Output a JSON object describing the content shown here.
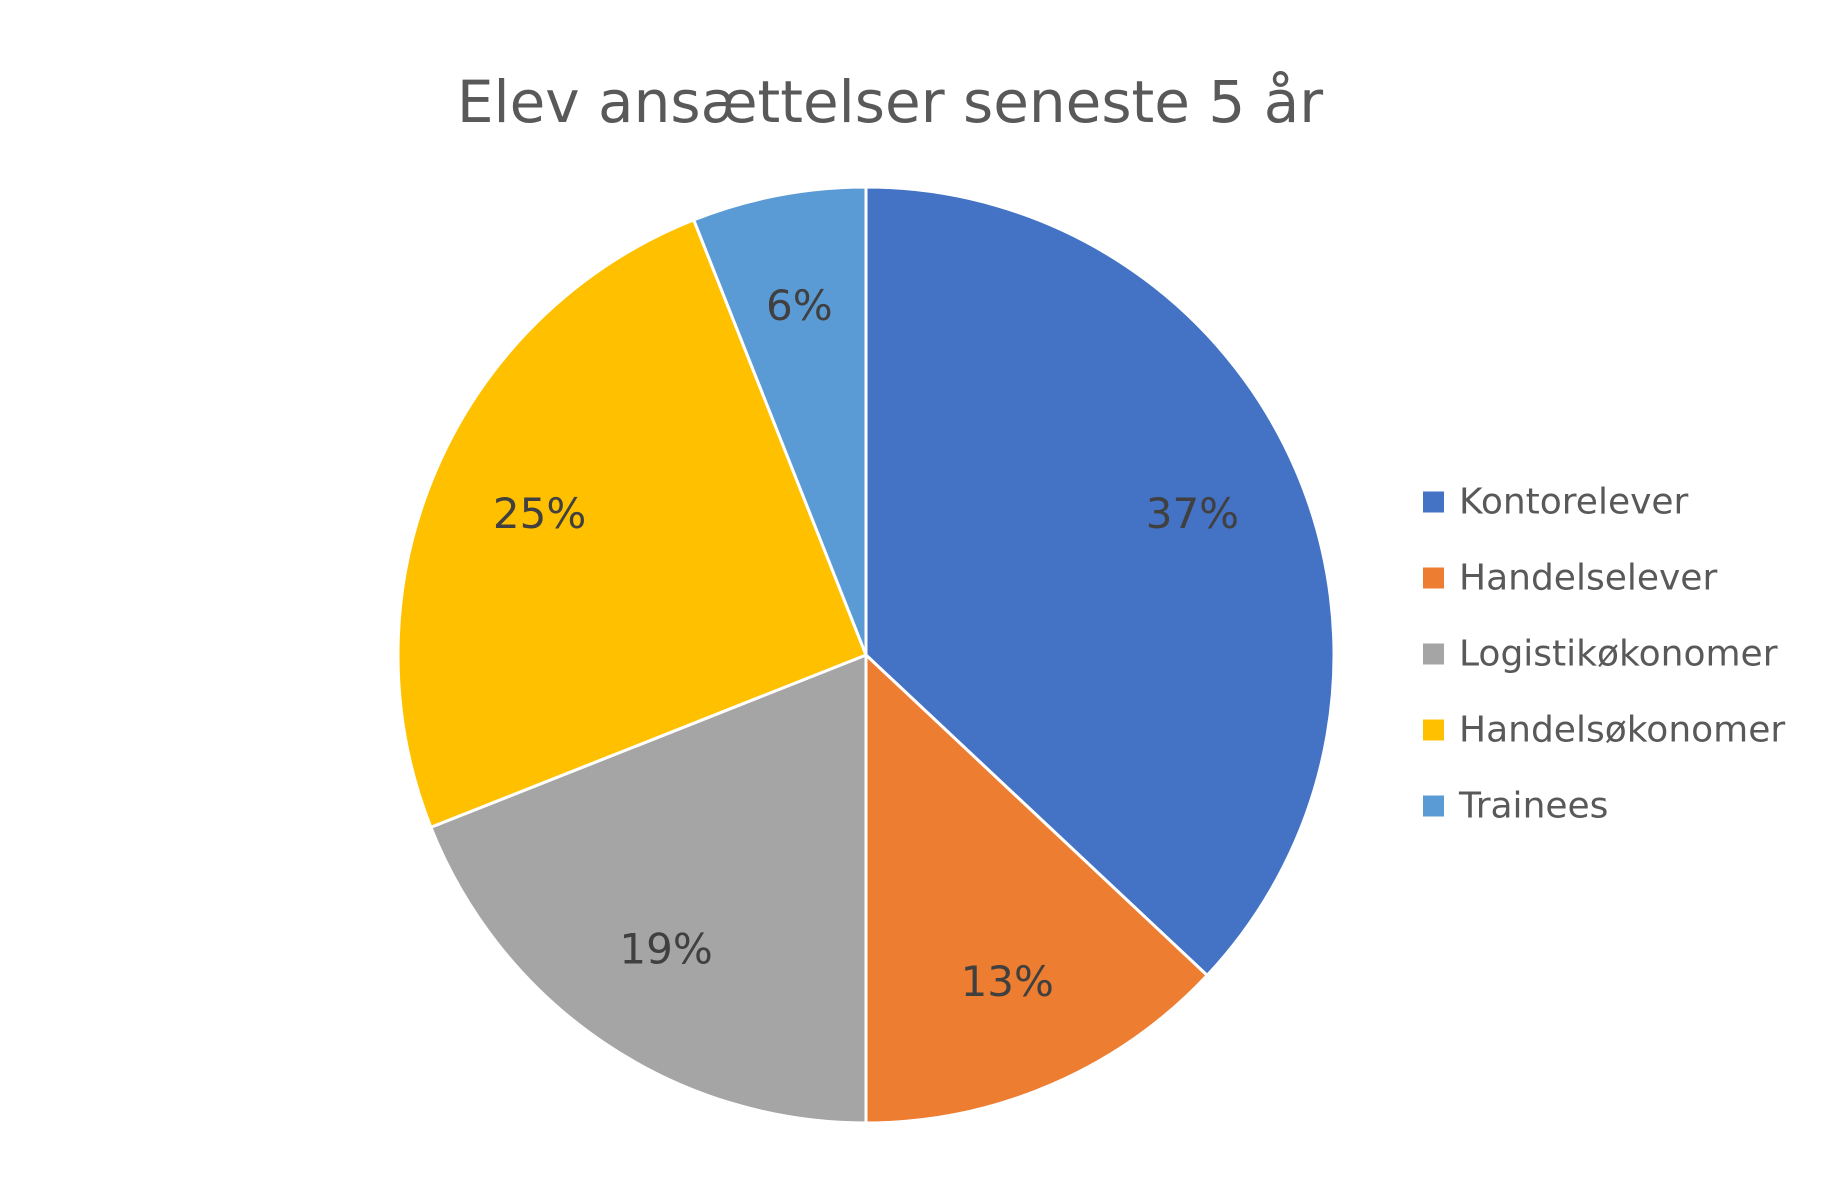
{
  "chart_data": {
    "type": "pie",
    "title": "Elev ansættelser seneste 5 år",
    "categories": [
      "Kontorelever",
      "Handelselever",
      "Logistikøkonomer",
      "Handelsøkonomer",
      "Trainees"
    ],
    "values": [
      37,
      13,
      19,
      25,
      6
    ],
    "labels": [
      "37%",
      "13%",
      "19%",
      "25%",
      "6%"
    ],
    "colors": [
      "#4472C4",
      "#ED7D31",
      "#A5A5A5",
      "#FFC000",
      "#5B9BD5"
    ],
    "start_angle_deg": 0,
    "direction": "clockwise",
    "legend_position": "right"
  }
}
